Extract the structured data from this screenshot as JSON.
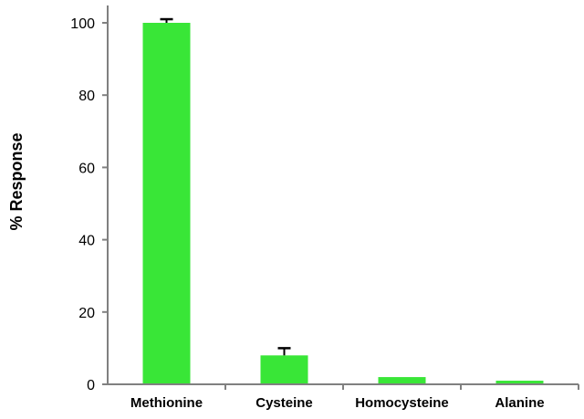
{
  "chart_data": {
    "type": "bar",
    "title": "",
    "xlabel": "",
    "ylabel": "% Response",
    "categories": [
      "Methionine",
      "Cysteine",
      "Homocysteine",
      "Alanine"
    ],
    "values": [
      100,
      8,
      2,
      1
    ],
    "error_bars": [
      1,
      2,
      0,
      0
    ],
    "ylim": [
      0,
      100
    ],
    "yticks": [
      "0",
      "20",
      "40",
      "60",
      "80",
      "100"
    ],
    "grid": false,
    "legend": "none",
    "colors": {
      "bar": "#39e637",
      "axis": "#808080",
      "error_bar": "#000000"
    }
  }
}
